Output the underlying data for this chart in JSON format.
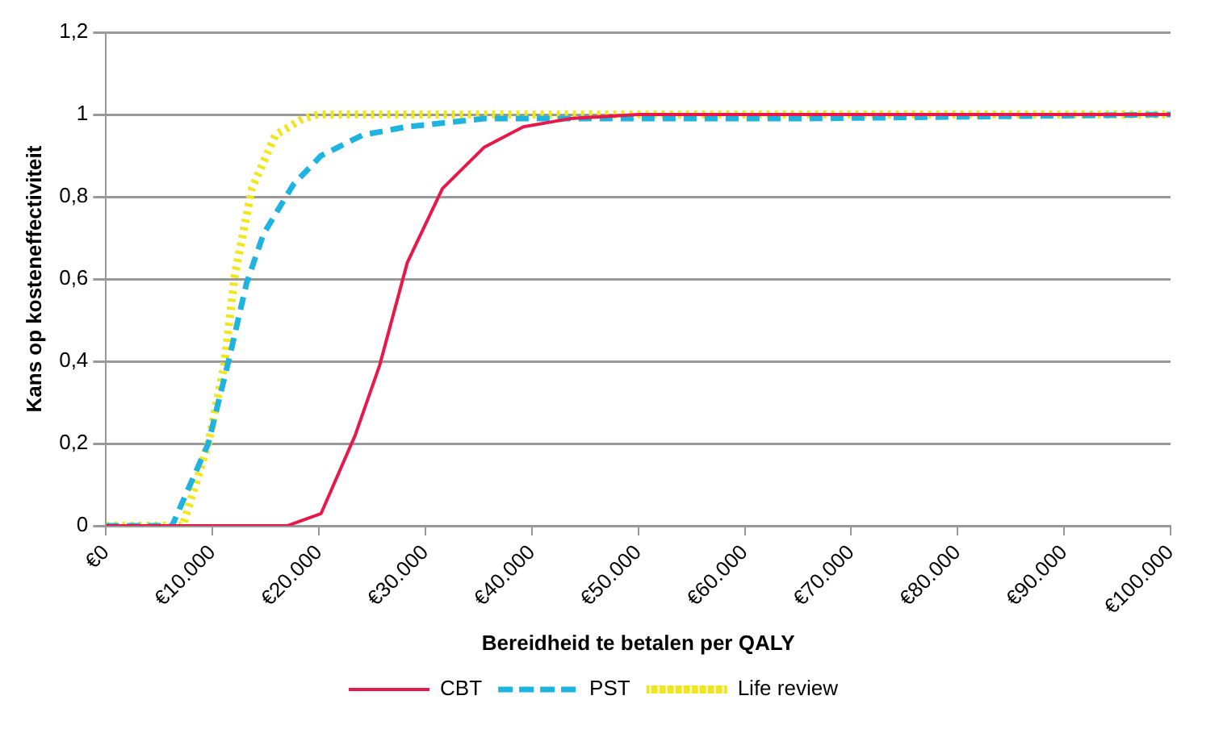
{
  "chart_data": {
    "type": "line",
    "xlabel": "Bereidheid te betalen per QALY",
    "ylabel": "Kans op kosteneffectiviteit",
    "xlim": [
      0,
      100000
    ],
    "ylim": [
      0,
      1.2
    ],
    "xticks": [
      {
        "value": 0,
        "label": "€0"
      },
      {
        "value": 10000,
        "label": "€10.000"
      },
      {
        "value": 20000,
        "label": "€20.000"
      },
      {
        "value": 30000,
        "label": "€30.000"
      },
      {
        "value": 40000,
        "label": "€40.000"
      },
      {
        "value": 50000,
        "label": "€50.000"
      },
      {
        "value": 60000,
        "label": "€60.000"
      },
      {
        "value": 70000,
        "label": "€70.000"
      },
      {
        "value": 80000,
        "label": "€80.000"
      },
      {
        "value": 90000,
        "label": "€90.000"
      },
      {
        "value": 100000,
        "label": "€100.000"
      }
    ],
    "yticks": [
      0,
      {
        "value": 0.2,
        "label": "0,2"
      },
      {
        "value": 0.4,
        "label": "0,4"
      },
      {
        "value": 0.6,
        "label": "0,6"
      },
      {
        "value": 0.8,
        "label": "0,8"
      },
      1,
      {
        "value": 1.2,
        "label": "1,2"
      }
    ],
    "grid": "y",
    "legend": "bottom",
    "marker": "none",
    "series": [
      {
        "name": "CBT",
        "color": "#e8194a",
        "line_style": "solid",
        "x": [
          0,
          17000,
          20200,
          23400,
          25700,
          28300,
          31600,
          35500,
          39200,
          43600,
          50000,
          100000
        ],
        "values": [
          0,
          0,
          0.03,
          0.22,
          0.39,
          0.64,
          0.82,
          0.92,
          0.97,
          0.99,
          1,
          1
        ]
      },
      {
        "name": "PST",
        "color": "#1fb3e0",
        "line_style": "dashed",
        "x": [
          0,
          6200,
          9600,
          11600,
          13200,
          14800,
          17600,
          20200,
          24100,
          28200,
          35500,
          64800,
          100000
        ],
        "values": [
          0,
          0,
          0.2,
          0.41,
          0.59,
          0.71,
          0.83,
          0.9,
          0.95,
          0.97,
          0.99,
          0.99,
          1
        ]
      },
      {
        "name": "Life review",
        "color": "#f0e61e",
        "line_style": "dotted",
        "x": [
          0,
          7200,
          9600,
          11100,
          12100,
          13700,
          15900,
          18500,
          19900,
          100000
        ],
        "values": [
          0,
          0,
          0.2,
          0.39,
          0.61,
          0.82,
          0.95,
          0.99,
          1,
          1
        ]
      }
    ]
  }
}
